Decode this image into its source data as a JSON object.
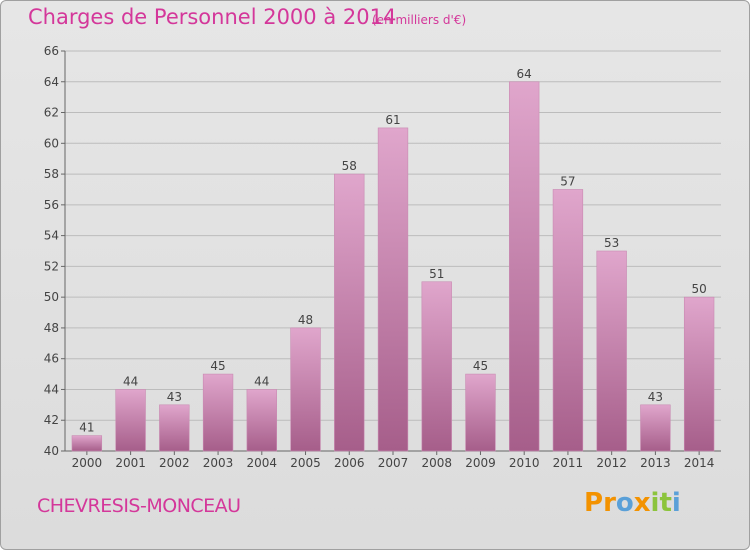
{
  "header": {
    "title": "Charges de Personnel 2000 à 2014",
    "subtitle": "(en milliers d'€)"
  },
  "footer": {
    "place": "CHEVRESIS-MONCEAU",
    "logo_letters": [
      "P",
      "r",
      "o",
      "x",
      "i",
      "t",
      "i"
    ]
  },
  "colors": {
    "title": "#d4379a",
    "bar_top": "#e0a6cc",
    "bar_bottom": "#a65e8a",
    "grid": "#bcbcbc",
    "logo": [
      "#f39200",
      "#f39200",
      "#5aa0d8",
      "#f39200",
      "#8cc43c",
      "#8cc43c",
      "#5aa0d8"
    ]
  },
  "chart_data": {
    "type": "bar",
    "title": "Charges de Personnel 2000 à 2014",
    "categories": [
      "2000",
      "2001",
      "2002",
      "2003",
      "2004",
      "2005",
      "2006",
      "2007",
      "2008",
      "2009",
      "2010",
      "2011",
      "2012",
      "2013",
      "2014"
    ],
    "values": [
      41,
      44,
      43,
      45,
      44,
      48,
      58,
      61,
      51,
      45,
      64,
      57,
      53,
      43,
      50
    ],
    "ylim": [
      40,
      66
    ],
    "yticks": [
      40,
      42,
      44,
      46,
      48,
      50,
      52,
      54,
      56,
      58,
      60,
      62,
      64,
      66
    ],
    "grid": true,
    "xlabel": "",
    "ylabel": ""
  }
}
